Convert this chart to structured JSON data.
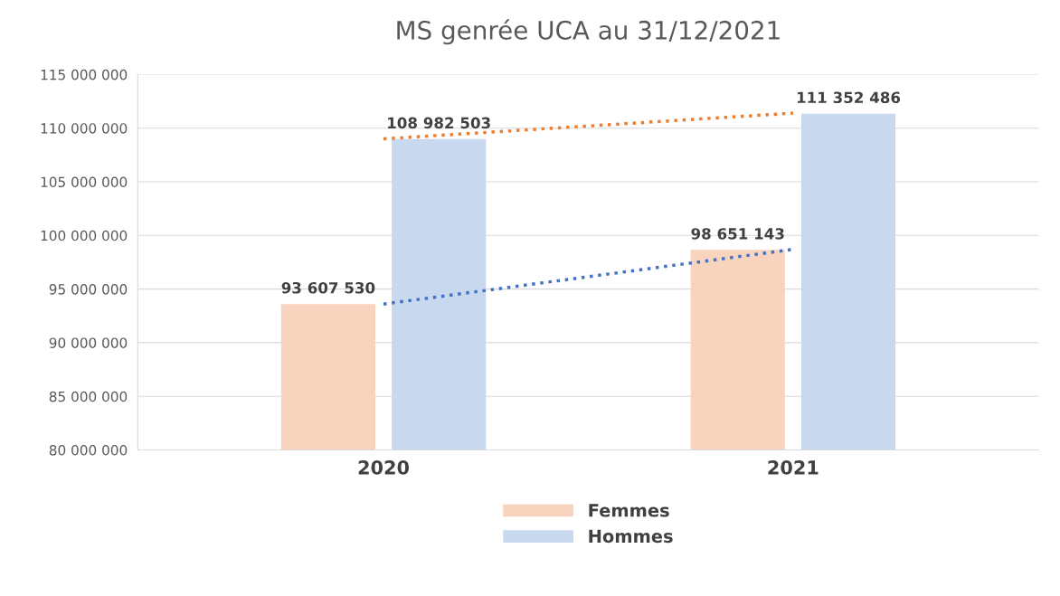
{
  "chart_data": {
    "type": "bar",
    "title": "MS genrée UCA au 31/12/2021",
    "categories": [
      "2020",
      "2021"
    ],
    "series": [
      {
        "name": "Femmes",
        "color": "#f8d3bd",
        "values": [
          93607530,
          98651143
        ],
        "value_labels": [
          "93 607 530",
          "98 651 143"
        ]
      },
      {
        "name": "Hommes",
        "color": "#c8d8ee",
        "values": [
          108982503,
          111352486
        ],
        "value_labels": [
          "108 982 503",
          "111 352 486"
        ]
      },
      {
        "type": "line",
        "color": "#4472c4",
        "line_style": "dotted",
        "values": [
          93600000,
          98700000
        ]
      },
      {
        "type": "line",
        "color": "#ed7d31",
        "line_style": "dotted",
        "values": [
          109000000,
          111400000
        ]
      }
    ],
    "ylim": [
      80000000,
      115000000
    ],
    "yticks": [
      {
        "value": 80000000,
        "label": "80 000 000"
      },
      {
        "value": 85000000,
        "label": "85 000 000"
      },
      {
        "value": 90000000,
        "label": "90 000 000"
      },
      {
        "value": 95000000,
        "label": "95 000 000"
      },
      {
        "value": 100000000,
        "label": "100 000 000"
      },
      {
        "value": 105000000,
        "label": "105 000 000"
      },
      {
        "value": 110000000,
        "label": "110 000 000"
      },
      {
        "value": 115000000,
        "label": "115 000 000"
      }
    ],
    "grid": "y",
    "legend": "bottom"
  }
}
